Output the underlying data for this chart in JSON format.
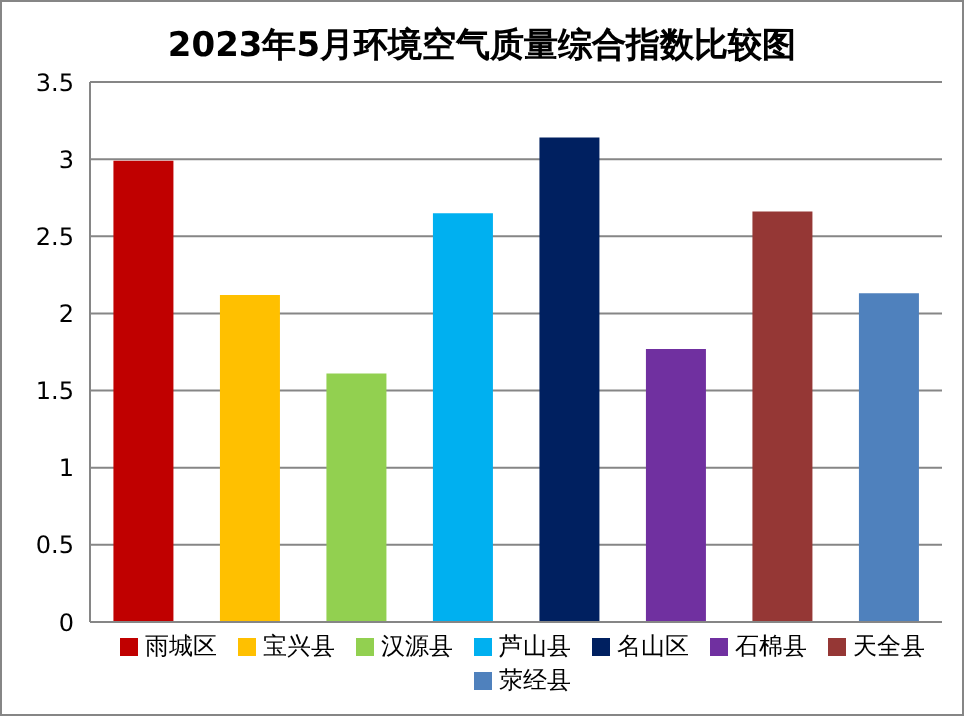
{
  "chart_data": {
    "type": "bar",
    "title": "2023年5月环境空气质量综合指数比较图",
    "categories": [
      null,
      null,
      null,
      null,
      null,
      null,
      null,
      null
    ],
    "series": [
      {
        "name": "雨城区",
        "color": "#c00000",
        "values": [
          2.99,
          null,
          null,
          null,
          null,
          null,
          null,
          null
        ]
      },
      {
        "name": "宝兴县",
        "color": "#ffc000",
        "values": [
          null,
          2.12,
          null,
          null,
          null,
          null,
          null,
          null
        ]
      },
      {
        "name": "汉源县",
        "color": "#92d050",
        "values": [
          null,
          null,
          1.61,
          null,
          null,
          null,
          null,
          null
        ]
      },
      {
        "name": "芦山县",
        "color": "#00b0f0",
        "values": [
          null,
          null,
          null,
          2.65,
          null,
          null,
          null,
          null
        ]
      },
      {
        "name": "名山区",
        "color": "#002060",
        "values": [
          null,
          null,
          null,
          null,
          3.14,
          null,
          null,
          null
        ]
      },
      {
        "name": "石棉县",
        "color": "#7030a0",
        "values": [
          null,
          null,
          null,
          null,
          null,
          1.77,
          null,
          null
        ]
      },
      {
        "name": "天全县",
        "color": "#953735",
        "values": [
          null,
          null,
          null,
          null,
          null,
          null,
          2.66,
          null
        ]
      },
      {
        "name": "荥经县",
        "color": "#4f81bd",
        "values": [
          null,
          null,
          null,
          null,
          null,
          null,
          null,
          2.13
        ]
      }
    ],
    "ylim": [
      0,
      3.5
    ],
    "yticks": [
      0,
      0.5,
      1,
      1.5,
      2,
      2.5,
      3,
      3.5
    ],
    "grid": "y",
    "legend": "bottom"
  }
}
